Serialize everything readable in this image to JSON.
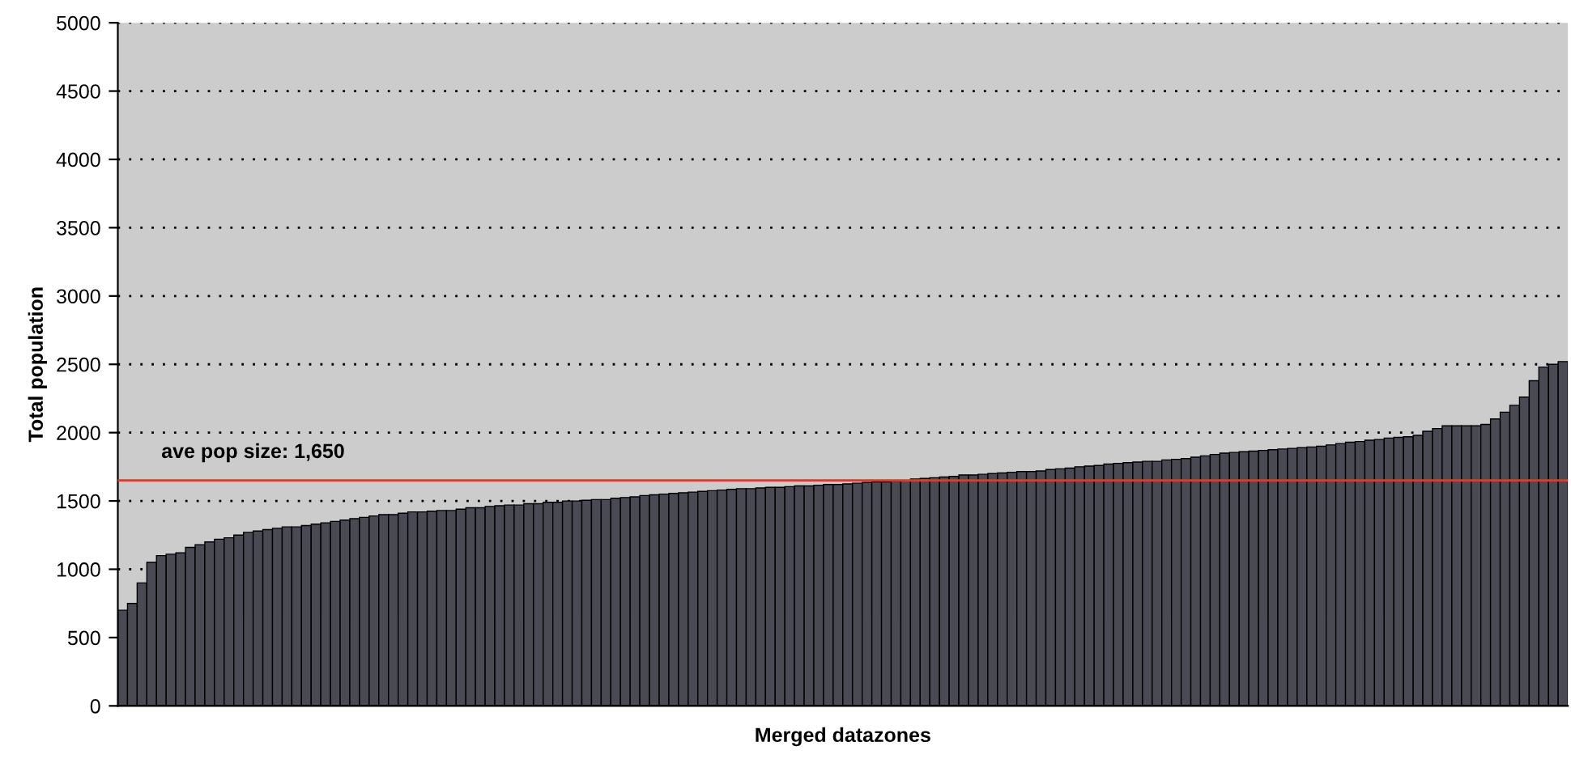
{
  "chart_data": {
    "type": "bar",
    "xlabel": "Merged datazones",
    "ylabel": "Total population",
    "categories": [
      null,
      null,
      null,
      null,
      null,
      null,
      null,
      null,
      null,
      null,
      null,
      null,
      null,
      null,
      null,
      null,
      null,
      null,
      null,
      null,
      null,
      null,
      null,
      null,
      null,
      null,
      null,
      null,
      null,
      null,
      null,
      null,
      null,
      null,
      null,
      null,
      null,
      null,
      null,
      null,
      null,
      null,
      null,
      null,
      null,
      null,
      null,
      null,
      null,
      null,
      null,
      null,
      null,
      null,
      null,
      null,
      null,
      null,
      null,
      null,
      null,
      null,
      null,
      null,
      null,
      null,
      null,
      null,
      null,
      null,
      null,
      null,
      null,
      null,
      null,
      null,
      null,
      null,
      null,
      null,
      null,
      null,
      null,
      null,
      null,
      null,
      null,
      null,
      null,
      null,
      null,
      null,
      null,
      null,
      null,
      null,
      null,
      null,
      null,
      null,
      null,
      null,
      null,
      null,
      null,
      null,
      null,
      null,
      null,
      null,
      null,
      null,
      null,
      null,
      null,
      null,
      null,
      null,
      null,
      null,
      null,
      null,
      null,
      null,
      null,
      null,
      null,
      null,
      null,
      null,
      null,
      null,
      null,
      null,
      null,
      null,
      null,
      null,
      null,
      null,
      null,
      null,
      null,
      null,
      null,
      null,
      null,
      null,
      null,
      null
    ],
    "values": [
      700,
      750,
      900,
      1050,
      1100,
      1110,
      1120,
      1160,
      1180,
      1200,
      1220,
      1230,
      1250,
      1270,
      1280,
      1290,
      1300,
      1310,
      1310,
      1320,
      1330,
      1340,
      1350,
      1360,
      1370,
      1380,
      1390,
      1400,
      1400,
      1410,
      1420,
      1420,
      1425,
      1430,
      1430,
      1440,
      1450,
      1450,
      1460,
      1465,
      1470,
      1470,
      1480,
      1480,
      1490,
      1490,
      1500,
      1500,
      1505,
      1510,
      1510,
      1520,
      1525,
      1530,
      1540,
      1545,
      1550,
      1555,
      1560,
      1565,
      1570,
      1575,
      1580,
      1585,
      1590,
      1590,
      1595,
      1600,
      1600,
      1605,
      1610,
      1610,
      1615,
      1620,
      1620,
      1625,
      1630,
      1635,
      1640,
      1640,
      1645,
      1650,
      1660,
      1665,
      1670,
      1675,
      1680,
      1690,
      1690,
      1695,
      1700,
      1705,
      1710,
      1715,
      1715,
      1720,
      1730,
      1735,
      1740,
      1750,
      1755,
      1760,
      1770,
      1775,
      1780,
      1785,
      1790,
      1790,
      1800,
      1805,
      1810,
      1820,
      1830,
      1840,
      1850,
      1855,
      1860,
      1865,
      1870,
      1875,
      1880,
      1885,
      1890,
      1895,
      1900,
      1910,
      1920,
      1930,
      1935,
      1945,
      1950,
      1960,
      1965,
      1970,
      1980,
      2010,
      2030,
      2050,
      2050,
      2050,
      2050,
      2060,
      2100,
      2150,
      2200,
      2260,
      2380,
      2480,
      2500,
      2520
    ],
    "color": "#4a4a55",
    "ylim": [
      0,
      5000
    ],
    "yticks": [
      0,
      500,
      1000,
      1500,
      2000,
      2500,
      3000,
      3500,
      4000,
      4500,
      5000
    ],
    "grid": "y",
    "ref_lines": [
      {
        "axis": "y",
        "value": 1650,
        "label": "ave pop size: 1,650",
        "color": "#e03a2a"
      }
    ]
  }
}
